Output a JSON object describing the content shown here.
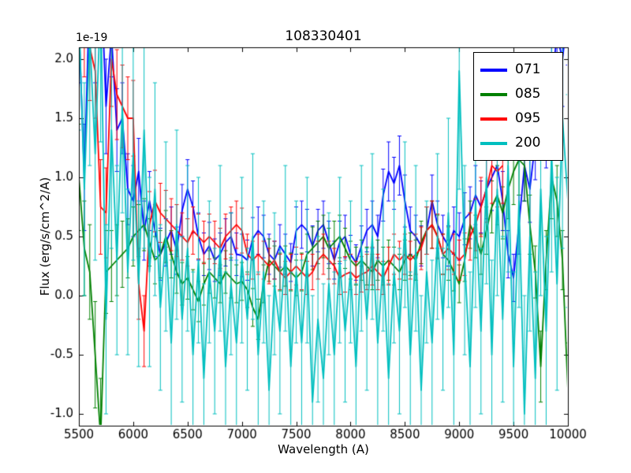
{
  "chart_data": {
    "type": "line",
    "title": "108330401",
    "xlabel": "Wavelength (A)",
    "ylabel": "Flux (erg/s/cm^2/A)",
    "y_offset_label": "1e-19",
    "xlim": [
      5500,
      10000
    ],
    "ylim": [
      -1.1,
      2.1
    ],
    "x_ticks": [
      5500,
      6000,
      6500,
      7000,
      7500,
      8000,
      8500,
      9000,
      9500,
      10000
    ],
    "y_ticks": [
      -1.0,
      -0.5,
      0.0,
      0.5,
      1.0,
      1.5,
      2.0
    ],
    "grid": false,
    "error_bars": true,
    "legend_position": "upper right",
    "series": [
      {
        "name": "071",
        "color": "#0000ff",
        "x0": 5500,
        "dx": 50,
        "values": [
          2.3,
          1.0,
          2.6,
          2.2,
          2.8,
          1.6,
          2.2,
          1.4,
          1.5,
          0.9,
          0.8,
          1.05,
          0.55,
          0.8,
          0.55,
          0.35,
          0.45,
          0.55,
          0.38,
          0.72,
          0.9,
          0.75,
          0.5,
          0.35,
          0.42,
          0.3,
          0.35,
          0.45,
          0.5,
          0.35,
          0.34,
          0.3,
          0.48,
          0.55,
          0.5,
          0.35,
          0.3,
          0.42,
          0.35,
          0.28,
          0.55,
          0.6,
          0.55,
          0.42,
          0.55,
          0.6,
          0.45,
          0.3,
          0.45,
          0.5,
          0.35,
          0.28,
          0.42,
          0.55,
          0.6,
          0.5,
          0.85,
          1.05,
          0.95,
          1.1,
          0.8,
          0.55,
          0.5,
          0.42,
          0.55,
          0.8,
          0.6,
          0.5,
          0.42,
          0.55,
          0.5,
          0.65,
          0.7,
          0.85,
          0.75,
          0.9,
          1.0,
          1.1,
          0.8,
          0.35,
          0.15,
          0.6,
          1.1,
          0.9,
          1.3,
          1.6,
          1.4,
          1.8,
          2.2,
          2.0,
          2.4
        ],
        "errors": [
          0.5,
          0.45,
          0.5,
          0.4,
          0.45,
          0.4,
          0.35,
          0.35,
          0.3,
          0.3,
          0.3,
          0.28,
          0.25,
          0.25,
          0.22,
          0.22,
          0.2,
          0.2,
          0.2,
          0.22,
          0.25,
          0.22,
          0.2,
          0.18,
          0.2,
          0.18,
          0.18,
          0.2,
          0.2,
          0.18,
          0.18,
          0.17,
          0.18,
          0.2,
          0.18,
          0.17,
          0.16,
          0.18,
          0.17,
          0.16,
          0.2,
          0.2,
          0.18,
          0.17,
          0.18,
          0.2,
          0.18,
          0.16,
          0.18,
          0.18,
          0.16,
          0.15,
          0.17,
          0.18,
          0.2,
          0.18,
          0.22,
          0.25,
          0.22,
          0.25,
          0.22,
          0.2,
          0.18,
          0.17,
          0.2,
          0.22,
          0.2,
          0.18,
          0.17,
          0.2,
          0.2,
          0.22,
          0.22,
          0.25,
          0.22,
          0.25,
          0.28,
          0.3,
          0.25,
          0.2,
          0.2,
          0.25,
          0.3,
          0.28,
          0.32,
          0.35,
          0.32,
          0.38,
          0.42,
          0.4,
          0.45
        ]
      },
      {
        "name": "085",
        "color": "#008000",
        "x0": 5500,
        "dx": 50,
        "values": [
          1.0,
          0.4,
          0.2,
          -0.5,
          -1.2,
          0.2,
          0.25,
          0.3,
          0.35,
          0.4,
          0.5,
          0.55,
          0.6,
          0.45,
          0.3,
          0.35,
          0.5,
          0.35,
          0.2,
          0.1,
          0.15,
          0.05,
          -0.05,
          0.1,
          0.2,
          0.15,
          0.1,
          0.2,
          0.15,
          0.1,
          0.12,
          0.05,
          -0.1,
          -0.2,
          0.1,
          0.3,
          0.25,
          0.2,
          0.25,
          0.2,
          0.15,
          0.2,
          0.35,
          0.4,
          0.45,
          0.5,
          0.4,
          0.45,
          0.5,
          0.4,
          0.3,
          0.25,
          0.3,
          0.25,
          0.2,
          0.3,
          0.25,
          0.3,
          0.25,
          0.2,
          0.3,
          0.35,
          0.3,
          0.45,
          0.55,
          0.6,
          0.5,
          0.35,
          0.3,
          0.2,
          0.1,
          0.3,
          0.6,
          0.5,
          0.35,
          0.55,
          0.75,
          0.85,
          0.7,
          0.9,
          1.05,
          1.15,
          1.1,
          0.6,
          0.2,
          -0.6,
          0.3,
          1.0,
          0.8,
          0.3,
          -0.8
        ],
        "errors": [
          0.45,
          0.4,
          0.4,
          0.45,
          0.5,
          0.35,
          0.3,
          0.3,
          0.28,
          0.25,
          0.25,
          0.22,
          0.22,
          0.2,
          0.2,
          0.2,
          0.22,
          0.2,
          0.18,
          0.18,
          0.18,
          0.17,
          0.17,
          0.18,
          0.18,
          0.17,
          0.16,
          0.18,
          0.17,
          0.16,
          0.16,
          0.15,
          0.16,
          0.17,
          0.16,
          0.18,
          0.17,
          0.16,
          0.17,
          0.16,
          0.15,
          0.16,
          0.17,
          0.18,
          0.18,
          0.18,
          0.17,
          0.18,
          0.18,
          0.17,
          0.16,
          0.16,
          0.17,
          0.16,
          0.15,
          0.17,
          0.16,
          0.17,
          0.16,
          0.15,
          0.17,
          0.18,
          0.17,
          0.18,
          0.2,
          0.2,
          0.18,
          0.17,
          0.17,
          0.16,
          0.16,
          0.18,
          0.2,
          0.18,
          0.17,
          0.2,
          0.22,
          0.25,
          0.22,
          0.25,
          0.28,
          0.3,
          0.3,
          0.25,
          0.22,
          0.3,
          0.25,
          0.35,
          0.3,
          0.25,
          0.4
        ]
      },
      {
        "name": "095",
        "color": "#ff0000",
        "x0": 5500,
        "dx": 50,
        "values": [
          2.6,
          2.3,
          2.1,
          1.9,
          0.75,
          0.7,
          2.0,
          1.7,
          1.6,
          1.5,
          1.5,
          0.1,
          -0.3,
          0.6,
          0.8,
          0.7,
          0.65,
          0.6,
          0.55,
          0.5,
          0.45,
          0.55,
          0.5,
          0.45,
          0.5,
          0.45,
          0.4,
          0.5,
          0.55,
          0.6,
          0.55,
          0.35,
          0.3,
          0.35,
          0.3,
          0.25,
          0.3,
          0.2,
          0.15,
          0.2,
          0.25,
          0.2,
          0.15,
          0.2,
          0.3,
          0.35,
          0.3,
          0.25,
          0.15,
          0.18,
          0.2,
          0.15,
          0.18,
          0.2,
          0.25,
          0.2,
          0.15,
          0.25,
          0.35,
          0.3,
          0.35,
          0.3,
          0.35,
          0.4,
          0.55,
          0.6,
          0.5,
          0.35,
          0.4,
          0.35,
          0.3,
          0.35,
          0.5,
          0.6,
          0.75,
          0.9,
          1.1,
          1.05,
          1.1
        ],
        "errors": [
          0.5,
          0.45,
          0.45,
          0.4,
          0.4,
          0.38,
          0.4,
          0.38,
          0.35,
          0.35,
          0.32,
          0.3,
          0.3,
          0.28,
          0.26,
          0.25,
          0.24,
          0.22,
          0.22,
          0.2,
          0.2,
          0.2,
          0.19,
          0.18,
          0.19,
          0.18,
          0.17,
          0.19,
          0.2,
          0.2,
          0.19,
          0.17,
          0.16,
          0.17,
          0.16,
          0.15,
          0.16,
          0.15,
          0.14,
          0.15,
          0.16,
          0.15,
          0.14,
          0.15,
          0.16,
          0.17,
          0.16,
          0.15,
          0.14,
          0.15,
          0.15,
          0.14,
          0.15,
          0.15,
          0.16,
          0.15,
          0.14,
          0.16,
          0.17,
          0.16,
          0.17,
          0.16,
          0.17,
          0.18,
          0.2,
          0.2,
          0.19,
          0.17,
          0.18,
          0.17,
          0.17,
          0.18,
          0.2,
          0.22,
          0.25,
          0.28,
          0.32,
          0.3,
          0.32
        ]
      },
      {
        "name": "200",
        "color": "#00bfbf",
        "x0": 5500,
        "dx": 50,
        "values": [
          2.4,
          0.9,
          2.2,
          1.2,
          2.5,
          -0.2,
          1.4,
          0.3,
          1.6,
          0.2,
          1.2,
          0.1,
          1.4,
          0.2,
          0.9,
          -0.1,
          0.5,
          -0.4,
          0.6,
          -0.2,
          0.4,
          -0.5,
          0.3,
          -0.7,
          0.2,
          -0.3,
          0.4,
          -0.6,
          0.1,
          -0.4,
          0.3,
          -0.2,
          0.5,
          -0.5,
          0.2,
          -0.8,
          0.1,
          -0.3,
          0.4,
          -0.6,
          0.2,
          -0.4,
          0.3,
          -0.9,
          -0.2,
          -0.7,
          0.1,
          -0.5,
          0.3,
          -0.3,
          0.2,
          -0.6,
          0.4,
          -0.2,
          0.5,
          -0.4,
          0.3,
          -0.7,
          0.2,
          -0.3,
          0.6,
          -0.5,
          0.4,
          -0.8,
          0.2,
          -0.4,
          0.5,
          -0.2,
          0.7,
          -0.5,
          1.9,
          0.3,
          -0.6,
          0.8,
          -0.3,
          1.0,
          -0.5,
          0.9,
          -0.2,
          1.1,
          -0.6,
          0.8,
          -1.0,
          0.5,
          -0.7,
          0.9,
          -0.3,
          1.2,
          0.1,
          1.5,
          0.8
        ],
        "errors": [
          1.0,
          0.9,
          1.1,
          0.9,
          1.2,
          0.8,
          1.0,
          0.8,
          0.9,
          0.7,
          0.9,
          0.7,
          1.0,
          0.8,
          0.9,
          0.7,
          0.8,
          0.7,
          0.8,
          0.7,
          0.7,
          0.7,
          0.7,
          0.8,
          0.6,
          0.7,
          0.7,
          0.8,
          0.6,
          0.7,
          0.7,
          0.6,
          0.7,
          0.7,
          0.6,
          0.8,
          0.6,
          0.7,
          0.7,
          0.8,
          0.6,
          0.7,
          0.7,
          0.9,
          0.7,
          0.8,
          0.6,
          0.7,
          0.7,
          0.6,
          0.6,
          0.7,
          0.7,
          0.6,
          0.7,
          0.7,
          0.6,
          0.8,
          0.6,
          0.7,
          0.7,
          0.7,
          0.7,
          0.8,
          0.6,
          0.7,
          0.7,
          0.6,
          0.8,
          0.7,
          1.0,
          0.8,
          0.8,
          0.9,
          0.7,
          0.9,
          0.8,
          0.9,
          0.7,
          0.9,
          0.8,
          0.9,
          1.0,
          0.8,
          0.9,
          0.9,
          0.8,
          1.0,
          0.9,
          1.1,
          0.9
        ]
      }
    ]
  }
}
